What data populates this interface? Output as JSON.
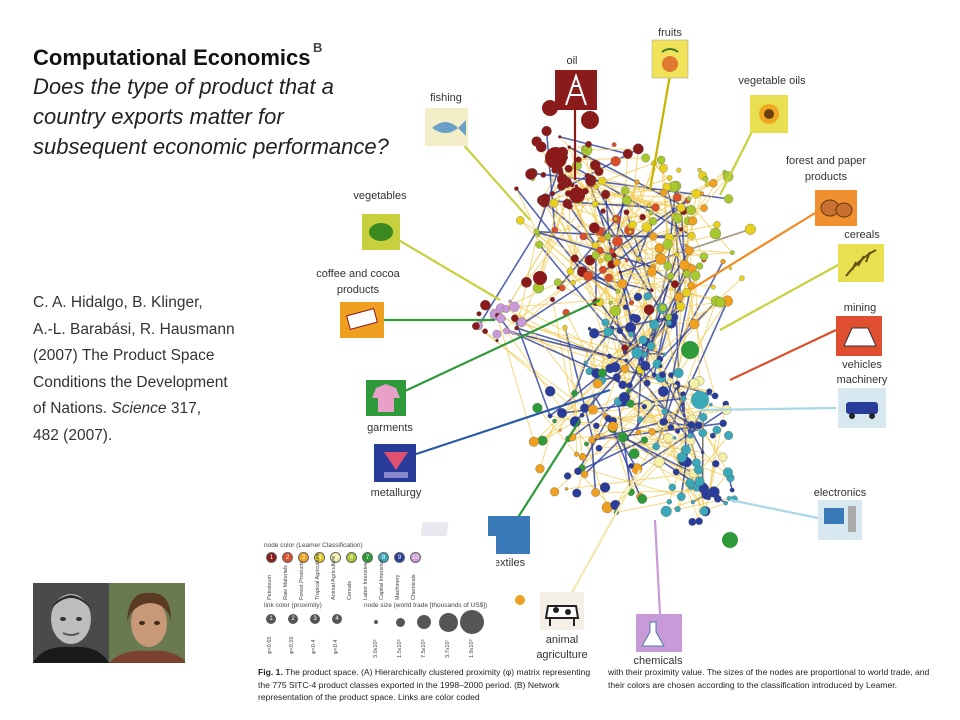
{
  "slide": {
    "title": "Computational Economics",
    "question_lines": [
      "Does the type of product that a",
      "country exports matter for",
      "subsequent economic performance?"
    ],
    "panel_label": "B",
    "citation_lines": [
      "C. A. Hidalgo, B. Klinger,",
      "A.-L. Barabási, R. Hausmann",
      "(2007) The Product Space",
      "Conditions the Development",
      "of Nations. ",
      "482 (2007)."
    ],
    "journal": "Science",
    "journal_rest": " 317,"
  },
  "network_labels": {
    "fruits": "fruits",
    "oil": "oil",
    "vegetable_oils": "vegetable oils",
    "fishing": "fishing",
    "forest_line1": "forest and paper",
    "forest_line2": "products",
    "vegetables": "vegetables",
    "cereals": "cereals",
    "coffee_line1": "coffee and cocoa",
    "coffee_line2": "products",
    "mining": "mining",
    "vehicles_line1": "vehicles",
    "vehicles_line2": "machinery",
    "garments": "garments",
    "metallurgy": "metallurgy",
    "electronics": "electronics",
    "textiles": "textiles",
    "animal_line1": "animal",
    "animal_line2": "agriculture",
    "chemicals": "chemicals"
  },
  "legend": {
    "node_color_title": "node color (Leamer Classification)",
    "classes": [
      {
        "num": "1",
        "name": "Petroleum",
        "color": "#8b1a1a"
      },
      {
        "num": "2",
        "name": "Raw Materials",
        "color": "#d94f2a"
      },
      {
        "num": "3",
        "name": "Forest Products",
        "color": "#f0a020"
      },
      {
        "num": "4",
        "name": "Tropical Agriculture",
        "color": "#e8d020"
      },
      {
        "num": "5",
        "name": "Animal Agriculture",
        "color": "#f4f0a8"
      },
      {
        "num": "6",
        "name": "Cereals",
        "color": "#a8c830"
      },
      {
        "num": "7",
        "name": "Labor Intensive",
        "color": "#2e9a3a"
      },
      {
        "num": "8",
        "name": "Capital Intensive",
        "color": "#3aa8b8"
      },
      {
        "num": "9",
        "name": "Machinery",
        "color": "#2a3c9a"
      },
      {
        "num": "10",
        "name": "Chemicals",
        "color": "#c89ad8"
      }
    ],
    "link_color_title": "link color (proximity)",
    "links": [
      {
        "num": "1",
        "label": "φ<0.65"
      },
      {
        "num": "2",
        "label": "φ<0.55"
      },
      {
        "num": "3",
        "label": "φ<0.4"
      },
      {
        "num": "4",
        "label": "φ<0.4"
      }
    ],
    "node_size_title": "node size (world trade [thousands of US$])",
    "sizes": [
      "3.0x10⁶",
      "1.5x10⁸",
      "7.5x10⁸",
      "3.7x10⁷",
      "1.9x10⁸"
    ]
  },
  "caption": {
    "left": "The product space. (A) Hierarchically clustered proximity (φ) matrix representing the 775 SITC-4 product classes exported in the 1998–2000 period. (B) Network representation of the product space. Links are color coded",
    "fig": "Fig. 1.",
    "right": "with their proximity value. The sizes of the nodes are proportional to world trade, and their colors are chosen according to the classification introduced by Leamer."
  },
  "colors": {
    "petroleum": "#8b1a1a",
    "machinery": "#2a3c9a",
    "labor": "#2e9a3a",
    "forest": "#f0a020",
    "link_weak": "#f2c94c",
    "link_strong": "#2b3d9e"
  }
}
